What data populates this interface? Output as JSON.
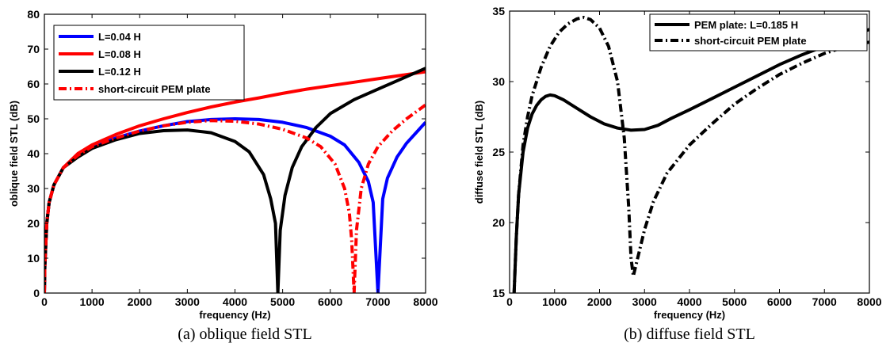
{
  "chart_data": [
    {
      "id": "a",
      "type": "line",
      "caption": "(a) oblique field STL",
      "xlabel": "frequency (Hz)",
      "ylabel": "oblique field STL (dB)",
      "xlim": [
        0,
        8000
      ],
      "ylim": [
        0,
        80
      ],
      "xticks": [
        0,
        1000,
        2000,
        3000,
        4000,
        5000,
        6000,
        7000,
        8000
      ],
      "yticks": [
        0,
        10,
        20,
        30,
        40,
        50,
        60,
        70,
        80
      ],
      "grid": false,
      "legend_position": "top-left",
      "series": [
        {
          "name": "L=0.04 H",
          "color": "#0000ff",
          "dash": "solid",
          "x": [
            0,
            10,
            50,
            100,
            200,
            400,
            700,
            1000,
            1500,
            2000,
            2500,
            3000,
            3500,
            4000,
            4500,
            5000,
            5500,
            6000,
            6300,
            6600,
            6800,
            6900,
            7000,
            7100,
            7200,
            7400,
            7600,
            7800,
            8000
          ],
          "y": [
            0,
            8,
            20,
            26,
            31,
            36,
            39.5,
            42,
            44.5,
            46.5,
            48,
            49.2,
            49.8,
            50,
            49.8,
            49,
            47.5,
            45,
            42.5,
            37.5,
            32,
            26,
            0,
            27,
            33,
            39,
            43,
            46,
            49
          ]
        },
        {
          "name": "L=0.08 H",
          "color": "#ff0000",
          "dash": "solid",
          "x": [
            0,
            10,
            50,
            100,
            200,
            400,
            700,
            1000,
            1500,
            2000,
            2500,
            3000,
            3500,
            4000,
            4500,
            5000,
            5500,
            6000,
            6500,
            7000,
            7500,
            8000
          ],
          "y": [
            0,
            8,
            20,
            26,
            31,
            36,
            40,
            42.5,
            45.5,
            48,
            50,
            51.8,
            53.4,
            54.8,
            56,
            57.3,
            58.5,
            59.5,
            60.5,
            61.5,
            62.5,
            63.5
          ]
        },
        {
          "name": "L=0.12 H",
          "color": "#000000",
          "dash": "solid",
          "x": [
            0,
            10,
            50,
            100,
            200,
            400,
            700,
            1000,
            1500,
            2000,
            2500,
            3000,
            3500,
            4000,
            4300,
            4600,
            4750,
            4850,
            4900,
            4950,
            5050,
            5200,
            5400,
            5700,
            6000,
            6500,
            7000,
            7500,
            8000
          ],
          "y": [
            0,
            8,
            20,
            26,
            31,
            36,
            39,
            41.5,
            44,
            45.8,
            46.6,
            46.8,
            46,
            43.5,
            40.5,
            34,
            27,
            20,
            0,
            18,
            28,
            36,
            42,
            47.5,
            51.5,
            55.5,
            58.5,
            61.5,
            64.5
          ]
        },
        {
          "name": "short-circuit PEM plate",
          "color": "#ff0000",
          "dash": "dashdot",
          "x": [
            0,
            10,
            50,
            100,
            200,
            400,
            700,
            1000,
            1500,
            2000,
            2500,
            3000,
            3500,
            4000,
            4500,
            5000,
            5500,
            5800,
            6100,
            6300,
            6400,
            6450,
            6500,
            6550,
            6650,
            6800,
            7000,
            7300,
            7600,
            8000
          ],
          "y": [
            0,
            8,
            20,
            26,
            31,
            36,
            39.5,
            42,
            44.5,
            46.5,
            48,
            49,
            49.5,
            49.3,
            48.5,
            47,
            44.5,
            42,
            37,
            30,
            23,
            15,
            0,
            18,
            30,
            37,
            42,
            46.5,
            50,
            54
          ]
        }
      ]
    },
    {
      "id": "b",
      "type": "line",
      "caption": "(b) diffuse field STL",
      "xlabel": "frequency (Hz)",
      "ylabel": "diffuse field STL (dB)",
      "xlim": [
        0,
        8000
      ],
      "ylim": [
        15,
        35
      ],
      "xticks": [
        0,
        1000,
        2000,
        3000,
        4000,
        5000,
        6000,
        7000,
        8000
      ],
      "yticks": [
        15,
        20,
        25,
        30,
        35
      ],
      "grid": false,
      "legend_position": "top-right",
      "series": [
        {
          "name": "PEM plate: L=0.185 H",
          "color": "#000000",
          "dash": "solid",
          "x": [
            100,
            150,
            200,
            300,
            400,
            500,
            600,
            700,
            800,
            900,
            1000,
            1200,
            1500,
            1800,
            2100,
            2400,
            2700,
            3000,
            3300,
            3600,
            4000,
            4500,
            5000,
            5500,
            6000,
            6500,
            7000,
            7500,
            8000
          ],
          "y": [
            15,
            19,
            22,
            25,
            26.7,
            27.7,
            28.3,
            28.7,
            28.95,
            29.05,
            29.0,
            28.7,
            28.1,
            27.5,
            27.0,
            26.7,
            26.55,
            26.6,
            26.9,
            27.4,
            28.0,
            28.8,
            29.6,
            30.4,
            31.2,
            31.9,
            32.5,
            33.1,
            33.7
          ]
        },
        {
          "name": "short-circuit PEM plate",
          "color": "#000000",
          "dash": "dashdot",
          "x": [
            100,
            150,
            200,
            300,
            400,
            500,
            700,
            900,
            1100,
            1300,
            1500,
            1650,
            1800,
            2000,
            2200,
            2400,
            2550,
            2650,
            2700,
            2750,
            2850,
            3000,
            3200,
            3500,
            4000,
            4500,
            5000,
            5500,
            6000,
            6500,
            7000,
            7500,
            8000
          ],
          "y": [
            15,
            19,
            22,
            25.5,
            27.5,
            29,
            31,
            32.5,
            33.5,
            34.1,
            34.45,
            34.55,
            34.4,
            33.8,
            32.5,
            30,
            26,
            21,
            17.5,
            16.2,
            17.5,
            19.5,
            21.5,
            23.5,
            25.5,
            27,
            28.4,
            29.5,
            30.5,
            31.3,
            32,
            32.5,
            32.8
          ]
        }
      ]
    }
  ]
}
